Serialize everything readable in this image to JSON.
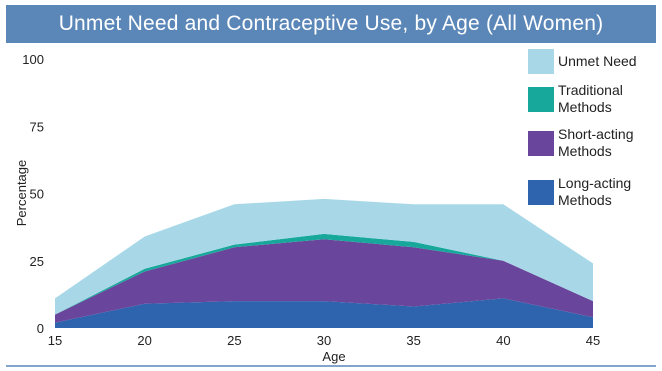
{
  "chart_data": {
    "type": "area",
    "stacked": true,
    "title": "Unmet Need and Contraceptive Use, by Age (All Women)",
    "xlabel": "Age",
    "ylabel": "Percentage",
    "x": [
      15,
      20,
      25,
      30,
      35,
      40,
      45
    ],
    "xticks": [
      "15",
      "20",
      "25",
      "30",
      "35",
      "40",
      "45"
    ],
    "yticks": [
      "0",
      "25",
      "50",
      "75",
      "100"
    ],
    "xlim": [
      15,
      45
    ],
    "ylim": [
      0,
      100
    ],
    "grid": false,
    "legend_position": "right",
    "series": [
      {
        "name": "Long-acting Methods",
        "color": "#2e63ae",
        "values": [
          2,
          9,
          10,
          10,
          8,
          11,
          4
        ]
      },
      {
        "name": "Short-acting Methods",
        "color": "#6a459c",
        "values": [
          3,
          12,
          20,
          23,
          22,
          14,
          6
        ]
      },
      {
        "name": "Traditional Methods",
        "color": "#17a89b",
        "values": [
          0,
          1,
          1,
          2,
          2,
          0,
          0
        ]
      },
      {
        "name": "Unmet Need",
        "color": "#a8d8e8",
        "values": [
          6,
          12,
          15,
          13,
          14,
          21,
          14
        ]
      }
    ],
    "legend": [
      {
        "name": "Unmet Need",
        "lines": [
          "Unmet Need"
        ],
        "color": "#a8d8e8"
      },
      {
        "name": "Traditional Methods",
        "lines": [
          "Traditional",
          "Methods"
        ],
        "color": "#17a89b"
      },
      {
        "name": "Short-acting Methods",
        "lines": [
          "Short-acting",
          "Methods"
        ],
        "color": "#6a459c"
      },
      {
        "name": "Long-acting Methods",
        "lines": [
          "Long-acting",
          "Methods"
        ],
        "color": "#2e63ae"
      }
    ]
  }
}
